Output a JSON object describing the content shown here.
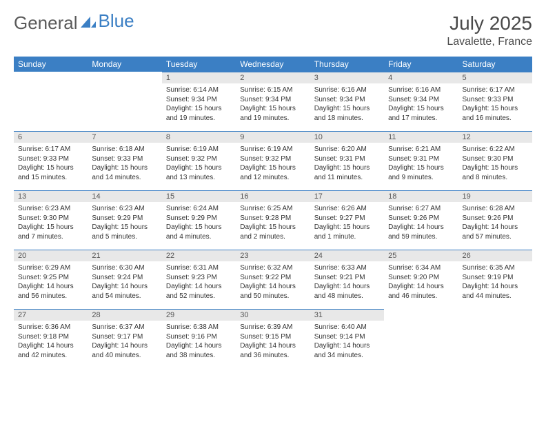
{
  "brand": {
    "part1": "General",
    "part2": "Blue"
  },
  "title": "July 2025",
  "location": "Lavalette, France",
  "colors": {
    "header_bg": "#3b7fc4",
    "header_text": "#ffffff",
    "daynum_bg": "#e8e8e8",
    "daynum_border": "#3b7fc4",
    "text": "#333333",
    "brand_gray": "#5a5a5a",
    "brand_blue": "#3b7fc4"
  },
  "weekdays": [
    "Sunday",
    "Monday",
    "Tuesday",
    "Wednesday",
    "Thursday",
    "Friday",
    "Saturday"
  ],
  "weeks": [
    [
      null,
      null,
      {
        "n": "1",
        "sr": "6:14 AM",
        "ss": "9:34 PM",
        "dl": "15 hours and 19 minutes."
      },
      {
        "n": "2",
        "sr": "6:15 AM",
        "ss": "9:34 PM",
        "dl": "15 hours and 19 minutes."
      },
      {
        "n": "3",
        "sr": "6:16 AM",
        "ss": "9:34 PM",
        "dl": "15 hours and 18 minutes."
      },
      {
        "n": "4",
        "sr": "6:16 AM",
        "ss": "9:34 PM",
        "dl": "15 hours and 17 minutes."
      },
      {
        "n": "5",
        "sr": "6:17 AM",
        "ss": "9:33 PM",
        "dl": "15 hours and 16 minutes."
      }
    ],
    [
      {
        "n": "6",
        "sr": "6:17 AM",
        "ss": "9:33 PM",
        "dl": "15 hours and 15 minutes."
      },
      {
        "n": "7",
        "sr": "6:18 AM",
        "ss": "9:33 PM",
        "dl": "15 hours and 14 minutes."
      },
      {
        "n": "8",
        "sr": "6:19 AM",
        "ss": "9:32 PM",
        "dl": "15 hours and 13 minutes."
      },
      {
        "n": "9",
        "sr": "6:19 AM",
        "ss": "9:32 PM",
        "dl": "15 hours and 12 minutes."
      },
      {
        "n": "10",
        "sr": "6:20 AM",
        "ss": "9:31 PM",
        "dl": "15 hours and 11 minutes."
      },
      {
        "n": "11",
        "sr": "6:21 AM",
        "ss": "9:31 PM",
        "dl": "15 hours and 9 minutes."
      },
      {
        "n": "12",
        "sr": "6:22 AM",
        "ss": "9:30 PM",
        "dl": "15 hours and 8 minutes."
      }
    ],
    [
      {
        "n": "13",
        "sr": "6:23 AM",
        "ss": "9:30 PM",
        "dl": "15 hours and 7 minutes."
      },
      {
        "n": "14",
        "sr": "6:23 AM",
        "ss": "9:29 PM",
        "dl": "15 hours and 5 minutes."
      },
      {
        "n": "15",
        "sr": "6:24 AM",
        "ss": "9:29 PM",
        "dl": "15 hours and 4 minutes."
      },
      {
        "n": "16",
        "sr": "6:25 AM",
        "ss": "9:28 PM",
        "dl": "15 hours and 2 minutes."
      },
      {
        "n": "17",
        "sr": "6:26 AM",
        "ss": "9:27 PM",
        "dl": "15 hours and 1 minute."
      },
      {
        "n": "18",
        "sr": "6:27 AM",
        "ss": "9:26 PM",
        "dl": "14 hours and 59 minutes."
      },
      {
        "n": "19",
        "sr": "6:28 AM",
        "ss": "9:26 PM",
        "dl": "14 hours and 57 minutes."
      }
    ],
    [
      {
        "n": "20",
        "sr": "6:29 AM",
        "ss": "9:25 PM",
        "dl": "14 hours and 56 minutes."
      },
      {
        "n": "21",
        "sr": "6:30 AM",
        "ss": "9:24 PM",
        "dl": "14 hours and 54 minutes."
      },
      {
        "n": "22",
        "sr": "6:31 AM",
        "ss": "9:23 PM",
        "dl": "14 hours and 52 minutes."
      },
      {
        "n": "23",
        "sr": "6:32 AM",
        "ss": "9:22 PM",
        "dl": "14 hours and 50 minutes."
      },
      {
        "n": "24",
        "sr": "6:33 AM",
        "ss": "9:21 PM",
        "dl": "14 hours and 48 minutes."
      },
      {
        "n": "25",
        "sr": "6:34 AM",
        "ss": "9:20 PM",
        "dl": "14 hours and 46 minutes."
      },
      {
        "n": "26",
        "sr": "6:35 AM",
        "ss": "9:19 PM",
        "dl": "14 hours and 44 minutes."
      }
    ],
    [
      {
        "n": "27",
        "sr": "6:36 AM",
        "ss": "9:18 PM",
        "dl": "14 hours and 42 minutes."
      },
      {
        "n": "28",
        "sr": "6:37 AM",
        "ss": "9:17 PM",
        "dl": "14 hours and 40 minutes."
      },
      {
        "n": "29",
        "sr": "6:38 AM",
        "ss": "9:16 PM",
        "dl": "14 hours and 38 minutes."
      },
      {
        "n": "30",
        "sr": "6:39 AM",
        "ss": "9:15 PM",
        "dl": "14 hours and 36 minutes."
      },
      {
        "n": "31",
        "sr": "6:40 AM",
        "ss": "9:14 PM",
        "dl": "14 hours and 34 minutes."
      },
      null,
      null
    ]
  ],
  "labels": {
    "sunrise": "Sunrise:",
    "sunset": "Sunset:",
    "daylight": "Daylight:"
  }
}
